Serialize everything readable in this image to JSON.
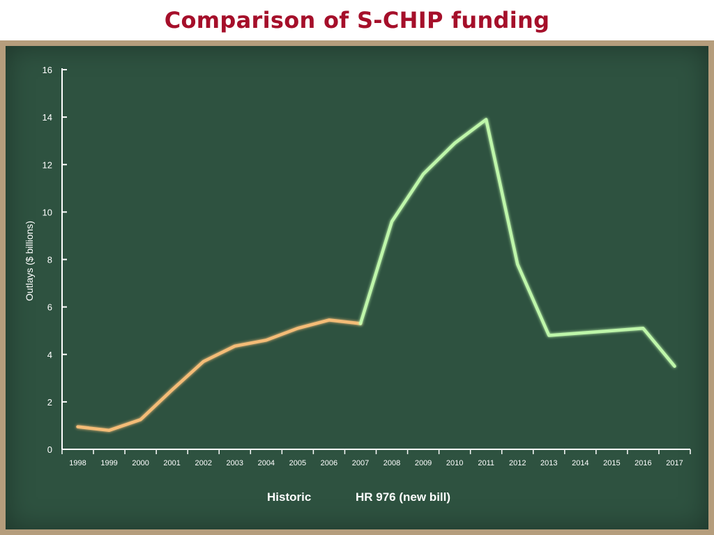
{
  "slide": {
    "title": "Comparison of S-CHIP funding"
  },
  "colors": {
    "title": "#a50f2a",
    "board_frame": "#b59d7c",
    "board": "#2e5240",
    "historic": "#ffc27a",
    "new_bill": "#c6ffb0",
    "axis": "#ffffff"
  },
  "chart_data": {
    "type": "line",
    "title": "",
    "xlabel": "",
    "ylabel": "Outlays ($ billions)",
    "ylim": [
      0,
      16
    ],
    "yticks": [
      0,
      2,
      4,
      6,
      8,
      10,
      12,
      14,
      16
    ],
    "categories": [
      "1998",
      "1999",
      "2000",
      "2001",
      "2002",
      "2003",
      "2004",
      "2005",
      "2006",
      "2007",
      "2008",
      "2009",
      "2010",
      "2011",
      "2012",
      "2013",
      "2014",
      "2015",
      "2016",
      "2017"
    ],
    "grid": false,
    "legend_position": "bottom-center",
    "series": [
      {
        "name": "Historic",
        "color": "#ffc27a",
        "x": [
          "1998",
          "1999",
          "2000",
          "2001",
          "2002",
          "2003",
          "2004",
          "2005",
          "2006",
          "2007"
        ],
        "values": [
          0.95,
          0.8,
          1.25,
          2.5,
          3.7,
          4.35,
          4.6,
          5.1,
          5.45,
          5.3
        ]
      },
      {
        "name": "HR 976 (new bill)",
        "color": "#c6ffb0",
        "x": [
          "2007",
          "2008",
          "2009",
          "2010",
          "2011",
          "2012",
          "2013",
          "2014",
          "2015",
          "2016",
          "2017"
        ],
        "values": [
          5.3,
          9.6,
          11.6,
          12.9,
          13.9,
          7.8,
          4.8,
          4.9,
          5.0,
          5.1,
          3.5
        ]
      }
    ]
  }
}
